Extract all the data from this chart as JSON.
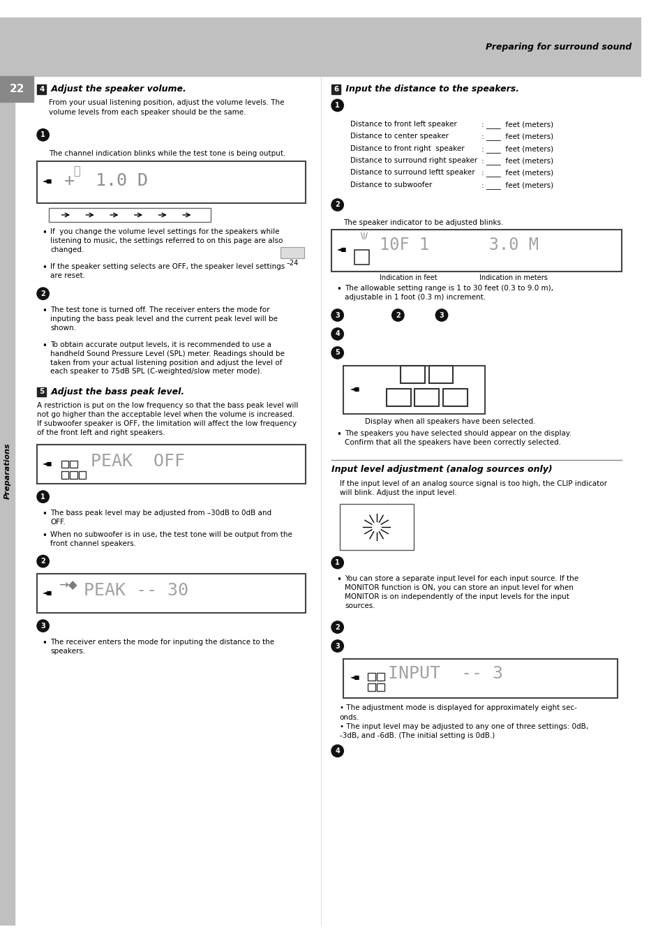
{
  "page_num": "22",
  "header_text": "Preparing for surround sound",
  "sidebar_text": "Preparations",
  "section4_title": " Adjust the speaker volume.",
  "section4_num": "4",
  "section4_intro": "From your usual listening position, adjust the volume levels. The\nvolume levels from each speaker should be the same.",
  "section4_caption": "The channel indication blinks while the test tone is being output.",
  "section4_bullets1": [
    "If  you change the volume level settings for the speakers while\nlistening to music, the settings referred to on this page are also\nchanged.",
    "If the speaker setting selects are OFF, the speaker level settings\nare reset."
  ],
  "section4_bullets2": [
    "The test tone is turned off. The receiver enters the mode for\ninputing the bass peak level and the current peak level will be\nshown.",
    "To obtain accurate output levels, it is recommended to use a\nhandheld Sound Pressure Level (SPL) meter. Readings should be\ntaken from your actual listening position and adjust the level of\neach speaker to 75dB SPL (C-weighted/slow meter mode)."
  ],
  "section5_title": " Adjust the bass peak level.",
  "section5_num": "5",
  "section5_intro": "A restriction is put on the low frequency so that the bass peak level will\nnot go higher than the acceptable level when the volume is increased.\nIf subwoofer speaker is OFF, the limitation will affect the low frequency\nof the front left and right speakers.",
  "section5_bullets1": [
    "The bass peak level may be adjusted from –30dB to 0dB and\nOFF.",
    "When no subwoofer is in use, the test tone will be output from the\nfront channel speakers."
  ],
  "section5_note3": "The receiver enters the mode for inputing the distance to the\nspeakers.",
  "section6_title": " Input the distance to the speakers.",
  "section6_num": "6",
  "section6_distances": [
    [
      "Distance to front left speaker",
      ": ____  feet (meters)"
    ],
    [
      "Distance to center speaker",
      ": ____  feet (meters)"
    ],
    [
      "Distance to front right  speaker",
      ": ____  feet (meters)"
    ],
    [
      "Distance to surround right speaker",
      ": ____  feet (meters)"
    ],
    [
      "Distance to surround leftt speaker",
      ": ____  feet (meters)"
    ],
    [
      "Distance to subwoofer",
      ": ____  feet (meters)"
    ]
  ],
  "section6_caption2": "The speaker indicator to be adjusted blinks.",
  "section6_feet": "Indication in feet",
  "section6_meters": "Indication in meters",
  "section6_bullet": "The allowable setting range is 1 to 30 feet (0.3 to 9.0 m),\nadjustable in 1 foot (0.3 m) increment.",
  "section6_display_cap": "Display when all speakers have been selected.",
  "section6_confirm": "The speakers you have selected should appear on the display.\nConfirm that all the speakers have been correctly selected.",
  "analog_title": "Input level adjustment (analog sources only)",
  "analog_intro": "If the input level of an analog source signal is too high, the CLIP indicator\nwill blink. Adjust the input level.",
  "analog_bullet1": "You can store a separate input level for each input source. If the\nMONITOR function is ON, you can store an input level for when\nMONITOR is on independently of the input levels for the input\nsources.",
  "analog_notes": "• The adjustment mode is displayed for approximately eight sec-\nonds.\n• The input level may be adjusted to any one of three settings: 0dB,\n-3dB, and -6dB. (The initial setting is 0dB.)"
}
